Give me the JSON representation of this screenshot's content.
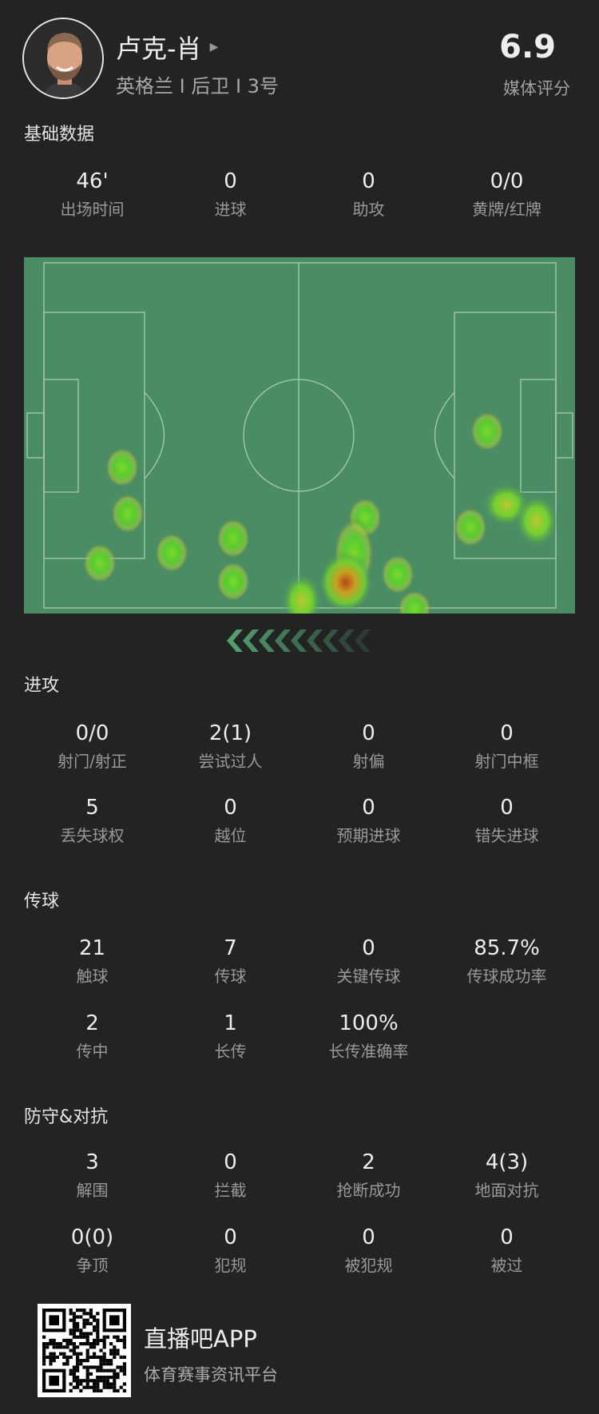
{
  "player": {
    "name": "卢克-肖",
    "info": "英格兰 I 后卫 I 3号",
    "rating": "6.9",
    "rating_label": "媒体评分"
  },
  "colors": {
    "background": "#232323",
    "pitch": "#4a8c64",
    "heat_low": "#66d22e",
    "heat_high": "#c0561b"
  },
  "sections": [
    {
      "title": "基础数据",
      "rows": [
        [
          {
            "v": "46'",
            "l": "出场时间"
          },
          {
            "v": "0",
            "l": "进球"
          },
          {
            "v": "0",
            "l": "助攻"
          },
          {
            "v": "0/0",
            "l": "黄牌/红牌"
          }
        ]
      ]
    },
    {
      "title": "进攻",
      "rows": [
        [
          {
            "v": "0/0",
            "l": "射门/射正"
          },
          {
            "v": "2(1)",
            "l": "尝试过人"
          },
          {
            "v": "0",
            "l": "射偏"
          },
          {
            "v": "0",
            "l": "射门中框"
          }
        ],
        [
          {
            "v": "5",
            "l": "丢失球权"
          },
          {
            "v": "0",
            "l": "越位"
          },
          {
            "v": "0",
            "l": "预期进球"
          },
          {
            "v": "0",
            "l": "错失进球"
          }
        ]
      ]
    },
    {
      "title": "传球",
      "rows": [
        [
          {
            "v": "21",
            "l": "触球"
          },
          {
            "v": "7",
            "l": "传球"
          },
          {
            "v": "0",
            "l": "关键传球"
          },
          {
            "v": "85.7%",
            "l": "传球成功率"
          }
        ],
        [
          {
            "v": "2",
            "l": "传中"
          },
          {
            "v": "1",
            "l": "长传"
          },
          {
            "v": "100%",
            "l": "长传准确率"
          }
        ]
      ]
    },
    {
      "title": "防守&对抗",
      "rows": [
        [
          {
            "v": "3",
            "l": "解围"
          },
          {
            "v": "0",
            "l": "拦截"
          },
          {
            "v": "2",
            "l": "抢断成功"
          },
          {
            "v": "4(3)",
            "l": "地面对抗"
          }
        ],
        [
          {
            "v": "0(0)",
            "l": "争顶"
          },
          {
            "v": "0",
            "l": "犯规"
          },
          {
            "v": "0",
            "l": "被犯规"
          },
          {
            "v": "0",
            "l": "被过"
          }
        ]
      ]
    }
  ],
  "heatmap": {
    "attack_direction": "left",
    "icon": "chevron-left-icon"
  },
  "footer": {
    "app_name": "直播吧APP",
    "tagline": "体育赛事资讯平台",
    "icon": "qr-code-icon"
  }
}
